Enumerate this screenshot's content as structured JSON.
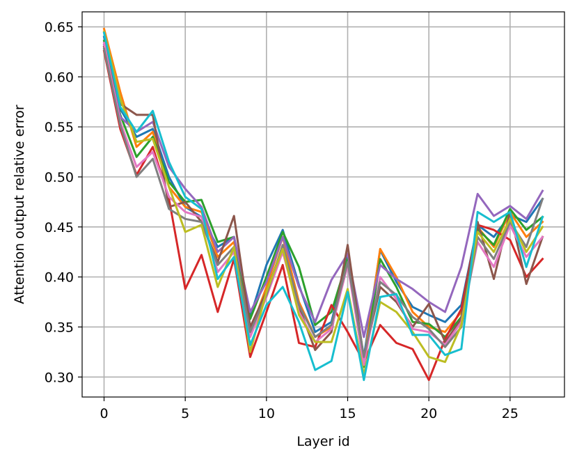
{
  "chart_data": {
    "type": "line",
    "title": "",
    "xlabel": "Layer id",
    "ylabel": "Attention output relative error",
    "xlim": [
      -1.35,
      28.35
    ],
    "ylim": [
      0.28,
      0.665
    ],
    "xticks": [
      0,
      5,
      10,
      15,
      20,
      25
    ],
    "xtick_labels": [
      "0",
      "5",
      "10",
      "15",
      "20",
      "25"
    ],
    "yticks": [
      0.3,
      0.35,
      0.4,
      0.45,
      0.5,
      0.55,
      0.6,
      0.65
    ],
    "ytick_labels": [
      "0.30",
      "0.35",
      "0.40",
      "0.45",
      "0.50",
      "0.55",
      "0.60",
      "0.65"
    ],
    "grid": true,
    "legend": false,
    "x": [
      0,
      1,
      2,
      3,
      4,
      5,
      6,
      7,
      8,
      9,
      10,
      11,
      12,
      13,
      14,
      15,
      16,
      17,
      18,
      19,
      20,
      21,
      22,
      23,
      24,
      25,
      26,
      27
    ],
    "series": [
      {
        "color": "#1f77b4",
        "values": [
          0.64,
          0.568,
          0.54,
          0.548,
          0.5,
          0.47,
          0.46,
          0.43,
          0.44,
          0.36,
          0.412,
          0.447,
          0.392,
          0.345,
          0.355,
          0.42,
          0.32,
          0.427,
          0.395,
          0.37,
          0.362,
          0.355,
          0.372,
          0.452,
          0.44,
          0.462,
          0.455,
          0.478
        ]
      },
      {
        "color": "#ff7f0e",
        "values": [
          0.648,
          0.585,
          0.53,
          0.545,
          0.49,
          0.47,
          0.465,
          0.42,
          0.435,
          0.345,
          0.39,
          0.44,
          0.375,
          0.34,
          0.35,
          0.415,
          0.315,
          0.428,
          0.4,
          0.365,
          0.35,
          0.345,
          0.365,
          0.45,
          0.43,
          0.465,
          0.44,
          0.455
        ]
      },
      {
        "color": "#2ca02c",
        "values": [
          0.636,
          0.562,
          0.52,
          0.54,
          0.495,
          0.475,
          0.477,
          0.435,
          0.44,
          0.358,
          0.4,
          0.445,
          0.41,
          0.352,
          0.365,
          0.418,
          0.31,
          0.418,
          0.39,
          0.355,
          0.353,
          0.34,
          0.36,
          0.448,
          0.432,
          0.468,
          0.447,
          0.46
        ]
      },
      {
        "color": "#d62728",
        "values": [
          0.626,
          0.548,
          0.502,
          0.53,
          0.478,
          0.388,
          0.422,
          0.365,
          0.418,
          0.32,
          0.365,
          0.412,
          0.334,
          0.33,
          0.372,
          0.345,
          0.315,
          0.352,
          0.334,
          0.328,
          0.297,
          0.338,
          0.368,
          0.452,
          0.447,
          0.437,
          0.4,
          0.418
        ]
      },
      {
        "color": "#9467bd",
        "values": [
          0.632,
          0.56,
          0.545,
          0.555,
          0.51,
          0.488,
          0.47,
          0.425,
          0.44,
          0.365,
          0.395,
          0.44,
          0.39,
          0.355,
          0.397,
          0.423,
          0.34,
          0.412,
          0.398,
          0.388,
          0.375,
          0.365,
          0.41,
          0.483,
          0.461,
          0.471,
          0.458,
          0.486
        ]
      },
      {
        "color": "#8c564b",
        "values": [
          0.63,
          0.573,
          0.562,
          0.562,
          0.47,
          0.475,
          0.455,
          0.415,
          0.461,
          0.35,
          0.385,
          0.43,
          0.37,
          0.327,
          0.345,
          0.432,
          0.318,
          0.39,
          0.375,
          0.35,
          0.373,
          0.335,
          0.358,
          0.455,
          0.398,
          0.465,
          0.393,
          0.44
        ]
      },
      {
        "color": "#e377c2",
        "values": [
          0.634,
          0.555,
          0.51,
          0.525,
          0.48,
          0.465,
          0.46,
          0.405,
          0.425,
          0.34,
          0.38,
          0.425,
          0.365,
          0.335,
          0.348,
          0.412,
          0.312,
          0.4,
          0.378,
          0.348,
          0.345,
          0.332,
          0.355,
          0.435,
          0.41,
          0.452,
          0.42,
          0.44
        ]
      },
      {
        "color": "#7f7f7f",
        "values": [
          0.628,
          0.552,
          0.5,
          0.518,
          0.468,
          0.458,
          0.455,
          0.412,
          0.43,
          0.345,
          0.382,
          0.432,
          0.372,
          0.34,
          0.352,
          0.415,
          0.32,
          0.395,
          0.382,
          0.36,
          0.348,
          0.33,
          0.35,
          0.44,
          0.418,
          0.455,
          0.43,
          0.478
        ]
      },
      {
        "color": "#bcbd22",
        "values": [
          0.645,
          0.578,
          0.535,
          0.538,
          0.49,
          0.445,
          0.452,
          0.39,
          0.43,
          0.325,
          0.385,
          0.428,
          0.362,
          0.335,
          0.335,
          0.388,
          0.302,
          0.375,
          0.365,
          0.345,
          0.32,
          0.315,
          0.352,
          0.445,
          0.425,
          0.458,
          0.425,
          0.45
        ]
      },
      {
        "color": "#17becf",
        "values": [
          0.644,
          0.57,
          0.545,
          0.566,
          0.515,
          0.48,
          0.468,
          0.398,
          0.42,
          0.332,
          0.372,
          0.39,
          0.355,
          0.307,
          0.316,
          0.385,
          0.297,
          0.38,
          0.383,
          0.342,
          0.342,
          0.322,
          0.328,
          0.465,
          0.455,
          0.465,
          0.41,
          0.46
        ]
      }
    ]
  }
}
